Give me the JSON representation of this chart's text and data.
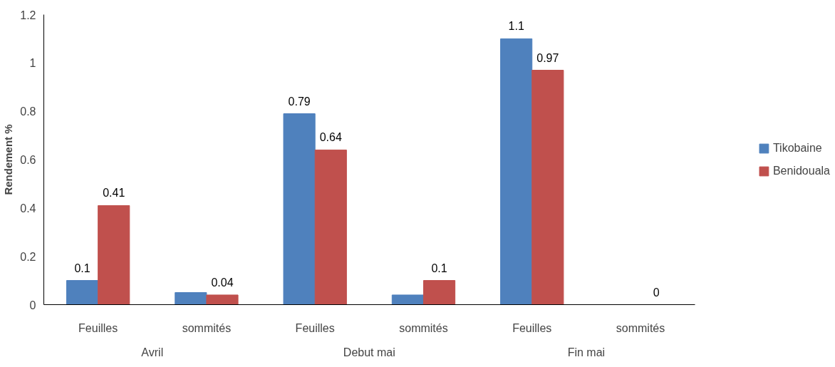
{
  "chart_data": {
    "type": "bar",
    "ylabel": "Rendement %",
    "categories": [
      "Feuilles",
      "sommités",
      "Feuilles",
      "sommités",
      "Feuilles",
      "sommités"
    ],
    "annotations": [
      "Avril",
      "Debut mai",
      "Fin mai"
    ],
    "series": [
      {
        "name": "Tikobaine",
        "color": "#4f81bd",
        "values": [
          0.1,
          0.05,
          0.79,
          0.04,
          1.1,
          0
        ],
        "value_labels": [
          "0.1",
          null,
          "0.79",
          null,
          "1.1",
          null
        ]
      },
      {
        "name": "Benidouala",
        "color": "#c0504d",
        "values": [
          0.41,
          0.04,
          0.64,
          0.1,
          0.97,
          0
        ],
        "value_labels": [
          "0.41",
          "0.04",
          "0.64",
          "0.1",
          "0.97",
          "0"
        ]
      }
    ],
    "ylim": [
      0,
      1.2
    ],
    "yticks": [
      0,
      0.2,
      0.4,
      0.6,
      0.8,
      1,
      1.2
    ],
    "grid": false,
    "legend": "right"
  }
}
